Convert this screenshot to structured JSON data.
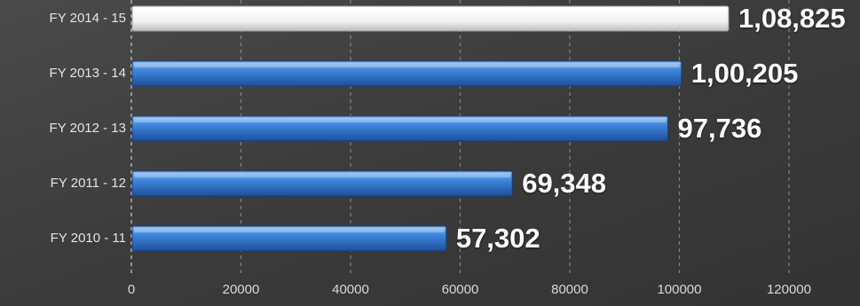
{
  "chart_data": {
    "type": "bar",
    "orientation": "horizontal",
    "title": "",
    "xlabel": "",
    "ylabel": "",
    "categories": [
      "FY 2014 - 15",
      "FY 2013 - 14",
      "FY 2012 - 13",
      "FY 2011 - 12",
      "FY 2010 - 11"
    ],
    "values": [
      108825,
      100205,
      97736,
      69348,
      57302
    ],
    "value_labels": [
      "1,08,825",
      "1,00,205",
      "97,736",
      "69,348",
      "57,302"
    ],
    "xlim": [
      0,
      120000
    ],
    "xticks": [
      0,
      20000,
      40000,
      60000,
      80000,
      100000,
      120000
    ],
    "xtick_labels": [
      "0",
      "20000",
      "40000",
      "60000",
      "80000",
      "100000",
      "120000"
    ],
    "grid": true,
    "highlight_index": 0,
    "colors": {
      "background": "#3a3a3a",
      "bar": "#3a7fd5",
      "highlight_bar": "#f5f5f5",
      "grid": "#bdbdbd",
      "text": "#ffffff"
    }
  }
}
